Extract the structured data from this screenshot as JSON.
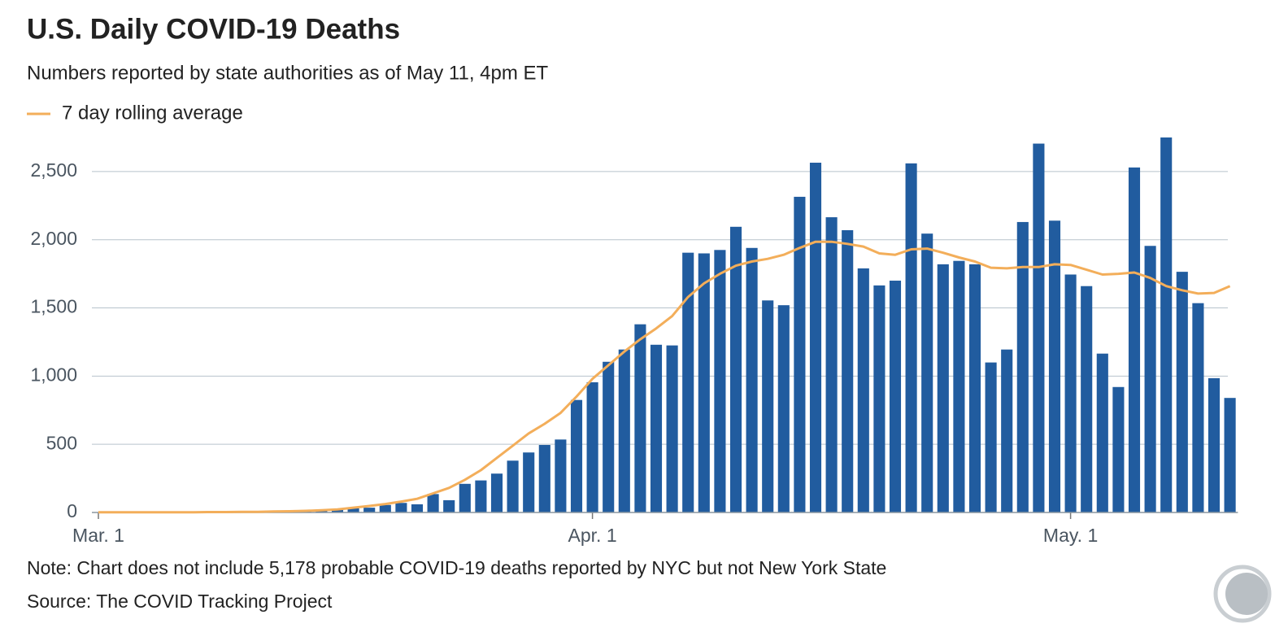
{
  "chart_data": {
    "type": "bar",
    "title": "U.S. Daily COVID-19 Deaths",
    "subtitle": "Numbers reported by state authorities as of May 11, 4pm ET",
    "note": "Note: Chart does not include 5,178 probable COVID-19 deaths reported by NYC but not New York State",
    "source": "Source: The COVID Tracking Project",
    "categories": [
      "Mar. 1",
      null,
      null,
      null,
      null,
      null,
      null,
      null,
      null,
      null,
      null,
      null,
      null,
      null,
      null,
      null,
      null,
      null,
      null,
      null,
      null,
      null,
      null,
      null,
      null,
      null,
      null,
      null,
      null,
      null,
      null,
      "Apr. 1",
      null,
      null,
      null,
      null,
      null,
      null,
      null,
      null,
      null,
      null,
      null,
      null,
      null,
      null,
      null,
      null,
      null,
      null,
      null,
      null,
      null,
      null,
      null,
      null,
      null,
      null,
      null,
      null,
      null,
      "May. 1",
      null,
      null,
      null,
      null,
      null,
      null,
      null,
      null,
      null,
      null
    ],
    "series": [
      {
        "type": "bar",
        "color": "#215c9f",
        "values": [
          1,
          0,
          2,
          3,
          2,
          3,
          2,
          5,
          4,
          8,
          8,
          9,
          12,
          15,
          20,
          22,
          30,
          35,
          55,
          70,
          60,
          135,
          90,
          210,
          235,
          285,
          380,
          440,
          495,
          535,
          825,
          955,
          1105,
          1195,
          1380,
          1230,
          1225,
          1905,
          1900,
          1925,
          2095,
          1940,
          1555,
          1520,
          2315,
          2565,
          2165,
          2070,
          1790,
          1665,
          1700,
          2560,
          2045,
          1820,
          1845,
          1820,
          1100,
          1195,
          2130,
          2705,
          2140,
          1745,
          1660,
          1165,
          920,
          2530,
          1955,
          2750,
          1765,
          1535,
          985,
          840
        ]
      },
      {
        "type": "line",
        "name": "7 day rolling average",
        "color": "#f3ae5a",
        "values": [
          1,
          1,
          1,
          1,
          2,
          2,
          2,
          3,
          3,
          4,
          5,
          7,
          9,
          12,
          16,
          22,
          35,
          48,
          62,
          80,
          100,
          140,
          180,
          240,
          310,
          400,
          490,
          580,
          650,
          730,
          850,
          980,
          1080,
          1180,
          1270,
          1350,
          1440,
          1580,
          1680,
          1750,
          1810,
          1840,
          1860,
          1890,
          1940,
          1985,
          1985,
          1970,
          1950,
          1900,
          1890,
          1930,
          1935,
          1905,
          1870,
          1840,
          1795,
          1790,
          1800,
          1800,
          1820,
          1815,
          1780,
          1745,
          1750,
          1760,
          1720,
          1660,
          1630,
          1605,
          1610,
          1660
        ]
      }
    ],
    "ylim": [
      0,
      2750
    ],
    "yticks": [
      0,
      500,
      {
        "value": 1000,
        "label": "1,000"
      },
      {
        "value": 1500,
        "label": "1,500"
      },
      {
        "value": 2000,
        "label": "2,000"
      },
      {
        "value": 2500,
        "label": "2,500"
      }
    ],
    "grid": true
  }
}
